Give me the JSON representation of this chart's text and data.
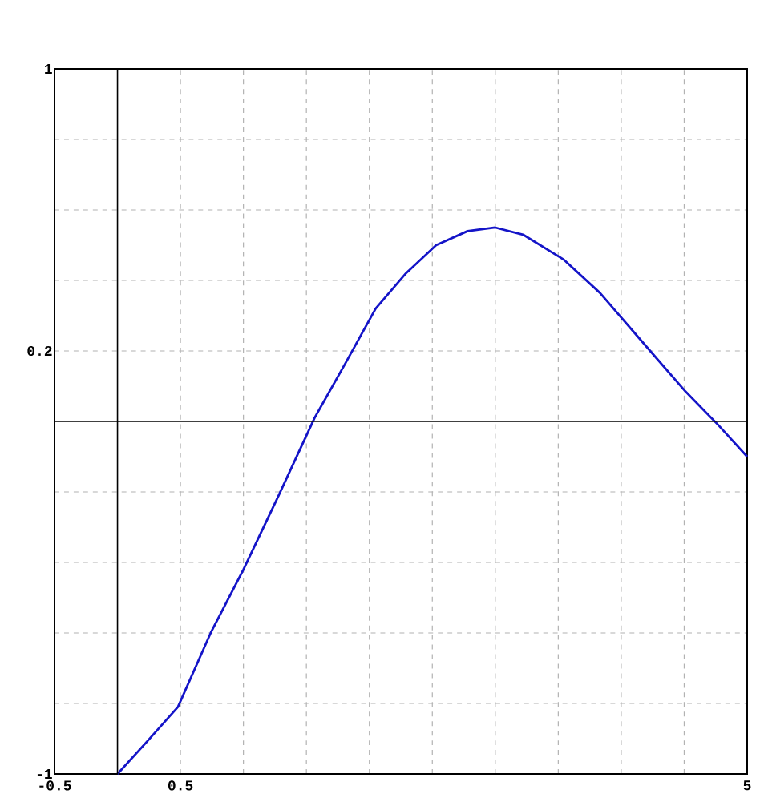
{
  "chart_data": {
    "type": "line",
    "x": [
      0,
      0.23,
      0.48,
      0.74,
      1.0,
      1.28,
      1.565,
      1.81,
      2.05,
      2.29,
      2.53,
      2.78,
      3.0,
      3.22,
      3.54,
      3.83,
      4.23,
      4.51,
      4.77,
      5.0
    ],
    "series": [
      {
        "color": "#1414c8",
        "values": [
          -1,
          -0.91,
          -0.81,
          -0.6,
          -0.42,
          -0.21,
          0.01,
          0.165,
          0.32,
          0.42,
          0.5,
          0.54,
          0.55,
          0.53,
          0.46,
          0.365,
          0.2,
          0.085,
          -0.01,
          -0.1
        ]
      }
    ],
    "xlim": [
      -0.5,
      5
    ],
    "ylim": [
      -1,
      1
    ],
    "xticks": [
      {
        "value": -0.5,
        "label": "-0.5"
      },
      {
        "value": 0.5,
        "label": "0.5"
      },
      {
        "value": 1,
        "label": null
      },
      {
        "value": 1.5,
        "label": null
      },
      {
        "value": 2,
        "label": null
      },
      {
        "value": 2.5,
        "label": null
      },
      {
        "value": 3,
        "label": null
      },
      {
        "value": 3.5,
        "label": null
      },
      {
        "value": 4,
        "label": null
      },
      {
        "value": 4.5,
        "label": null
      },
      {
        "value": 5,
        "label": "5"
      }
    ],
    "yticks": [
      {
        "value": -1,
        "label": "-1"
      },
      {
        "value": -0.8,
        "label": null
      },
      {
        "value": -0.6,
        "label": null
      },
      {
        "value": -0.4,
        "label": null
      },
      {
        "value": -0.2,
        "label": null
      },
      {
        "value": 0.2,
        "label": "0.2"
      },
      {
        "value": 0.4,
        "label": null
      },
      {
        "value": 0.6,
        "label": null
      },
      {
        "value": 0.8,
        "label": null
      },
      {
        "value": 1,
        "label": "1"
      }
    ],
    "grid": true,
    "marker": "none",
    "line_style": "solid"
  }
}
